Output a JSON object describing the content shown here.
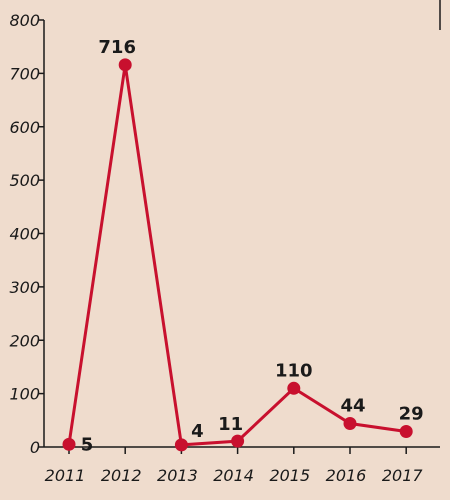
{
  "chart_data": {
    "type": "line",
    "title": "",
    "xlabel": "",
    "ylabel": "",
    "categories": [
      "2011",
      "2012",
      "2013",
      "2014",
      "2015",
      "2016",
      "2017"
    ],
    "series": [
      {
        "values": [
          5,
          716,
          4,
          11,
          110,
          44,
          29
        ]
      }
    ],
    "data_labels": [
      "5",
      "716",
      "4",
      "11",
      "110",
      "44",
      "29"
    ],
    "ylim": [
      0,
      800
    ],
    "yticks": [
      0,
      100,
      200,
      300,
      400,
      500,
      600,
      700,
      800
    ],
    "ytick_labels": [
      "0",
      "100",
      "200",
      "300",
      "400",
      "500",
      "600",
      "700",
      "800"
    ],
    "grid": false,
    "legend": "none",
    "colors": {
      "line": "#c8102e",
      "background": "#efdccd",
      "axis": "#1a1a1a"
    }
  }
}
